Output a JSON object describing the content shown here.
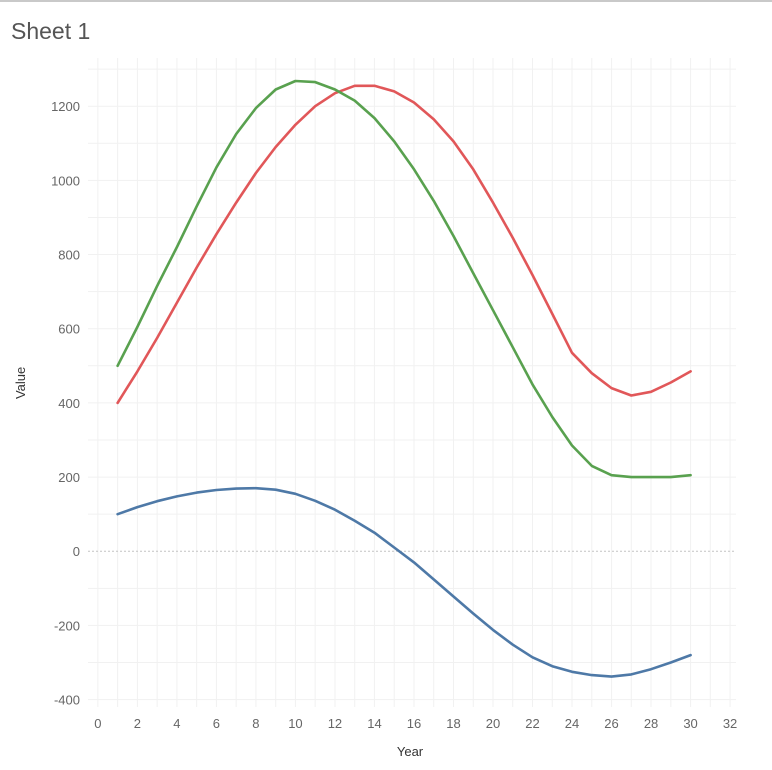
{
  "sheet": {
    "title": "Sheet 1"
  },
  "chart_data": {
    "type": "line",
    "title": "",
    "xlabel": "Year",
    "ylabel": "Value",
    "xlim": [
      -0.5,
      32.3
    ],
    "ylim": [
      -420,
      1330
    ],
    "xticks": [
      0,
      2,
      4,
      6,
      8,
      10,
      12,
      14,
      16,
      18,
      20,
      22,
      24,
      26,
      28,
      30,
      32
    ],
    "yticks": [
      -400,
      -200,
      0,
      200,
      400,
      600,
      800,
      1000,
      1200
    ],
    "grid": true,
    "legend": "none",
    "x": [
      1,
      2,
      3,
      4,
      5,
      6,
      7,
      8,
      9,
      10,
      11,
      12,
      13,
      14,
      15,
      16,
      17,
      18,
      19,
      20,
      21,
      22,
      23,
      24,
      25,
      26,
      27,
      28,
      29,
      30
    ],
    "series": [
      {
        "color": "#4e79a7",
        "values": [
          100,
          119,
          135,
          148,
          158,
          165,
          169,
          170,
          166,
          155,
          136,
          112,
          82,
          50,
          10,
          -30,
          -76,
          -122,
          -168,
          -212,
          -252,
          -286,
          -310,
          -325,
          -334,
          -338,
          -332,
          -318,
          -300,
          -280
        ]
      },
      {
        "color": "#e15759",
        "values": [
          400,
          485,
          575,
          670,
          765,
          855,
          940,
          1020,
          1090,
          1150,
          1200,
          1235,
          1255,
          1255,
          1240,
          1210,
          1165,
          1105,
          1030,
          940,
          845,
          745,
          640,
          535,
          480,
          440,
          420,
          430,
          455,
          485
        ]
      },
      {
        "color": "#59a14f",
        "values": [
          500,
          605,
          715,
          820,
          930,
          1035,
          1125,
          1195,
          1245,
          1268,
          1265,
          1245,
          1215,
          1168,
          1105,
          1030,
          945,
          850,
          750,
          650,
          550,
          450,
          362,
          285,
          230,
          205,
          200,
          200,
          200,
          205
        ]
      }
    ]
  }
}
